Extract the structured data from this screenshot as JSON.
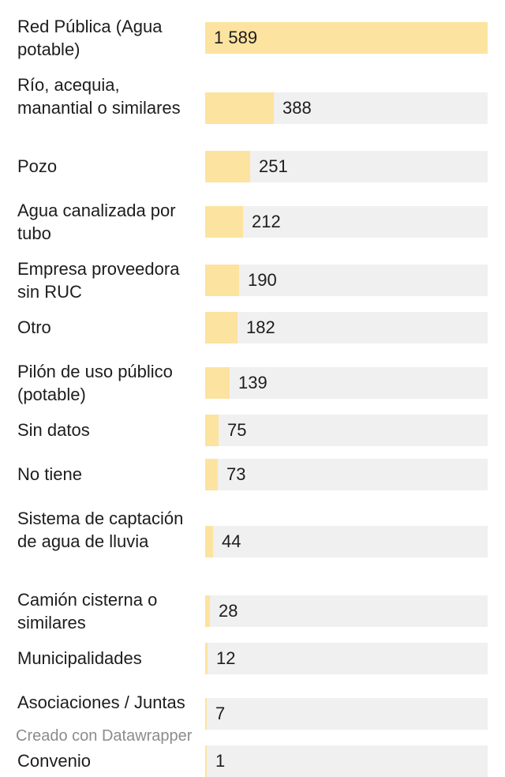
{
  "chart_data": {
    "type": "bar",
    "orientation": "horizontal",
    "categories": [
      "Red Pública (Agua potable)",
      "Río, acequia, manantial o similares",
      "Pozo",
      "Agua canalizada por tubo",
      "Empresa proveedora sin RUC",
      "Otro",
      "Pilón de uso público (potable)",
      "Sin datos",
      "No tiene",
      "Sistema de captación de agua de lluvia",
      "Camión cisterna o similares",
      "Municipalidades",
      "Asociaciones / Juntas",
      "Convenio"
    ],
    "values": [
      1589,
      388,
      251,
      212,
      190,
      182,
      139,
      75,
      73,
      44,
      28,
      12,
      7,
      1
    ],
    "value_labels": [
      "1 589",
      "388",
      "251",
      "212",
      "190",
      "182",
      "139",
      "75",
      "73",
      "44",
      "28",
      "12",
      "7",
      "1"
    ],
    "xlim": [
      0,
      1589
    ],
    "bar_color": "#fde3a0",
    "track_color": "#f0f0f0",
    "grid": false,
    "legend": "none"
  },
  "footer": {
    "credit": "Creado con Datawrapper"
  }
}
